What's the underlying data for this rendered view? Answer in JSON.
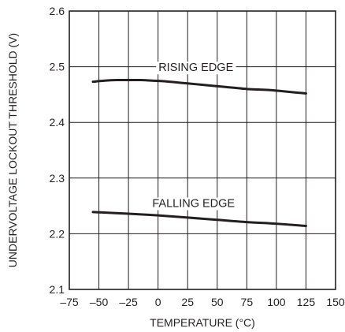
{
  "chart_data": {
    "type": "line",
    "title": "",
    "xlabel": "TEMPERATURE (°C)",
    "ylabel": "UNDERVOLTAGE LOCKOUT THRESHOLD (V)",
    "xlim": [
      -75,
      150
    ],
    "ylim": [
      2.1,
      2.6
    ],
    "xticks": [
      -75,
      -50,
      -25,
      0,
      25,
      50,
      75,
      100,
      125,
      150
    ],
    "xtick_labels": [
      "–75",
      "–50",
      "–25",
      "0",
      "25",
      "50",
      "75",
      "100",
      "125",
      "150"
    ],
    "yticks": [
      2.1,
      2.2,
      2.3,
      2.4,
      2.5,
      2.6
    ],
    "ytick_labels": [
      "2.1",
      "2.2",
      "2.3",
      "2.4",
      "2.5",
      "2.6"
    ],
    "grid": true,
    "legend": "none",
    "line_color": "#231f20",
    "series": [
      {
        "name": "RISING EDGE",
        "x": [
          -55,
          -45,
          -35,
          -25,
          -15,
          -5,
          5,
          15,
          25,
          35,
          45,
          55,
          65,
          75,
          85,
          95,
          105,
          115,
          125
        ],
        "y": [
          2.473,
          2.475,
          2.476,
          2.476,
          2.476,
          2.475,
          2.474,
          2.472,
          2.47,
          2.468,
          2.466,
          2.464,
          2.462,
          2.46,
          2.459,
          2.458,
          2.456,
          2.454,
          2.452
        ]
      },
      {
        "name": "FALLING EDGE",
        "x": [
          -55,
          -25,
          0,
          25,
          50,
          75,
          100,
          125
        ],
        "y": [
          2.239,
          2.236,
          2.233,
          2.229,
          2.225,
          2.221,
          2.218,
          2.214
        ]
      }
    ],
    "annotations": [
      {
        "text": "RISING EDGE",
        "x": 32,
        "y": 2.492
      },
      {
        "text": "FALLING EDGE",
        "x": 30,
        "y": 2.248
      }
    ]
  }
}
